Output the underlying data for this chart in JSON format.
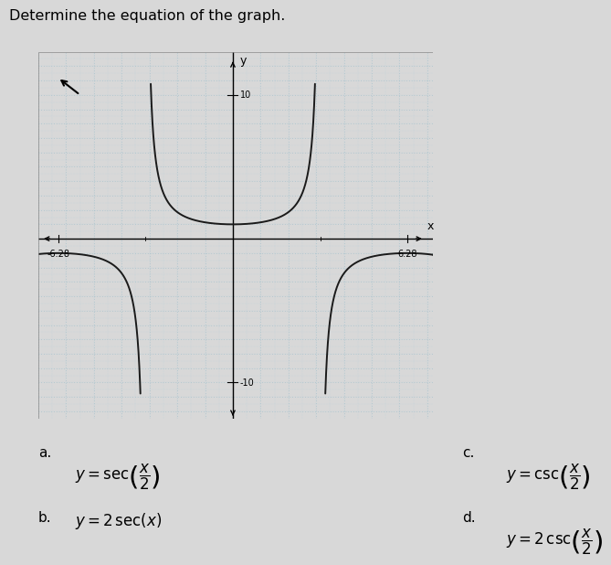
{
  "title": "Determine the equation of the graph.",
  "xlim": [
    -7.0,
    7.2
  ],
  "ylim": [
    -12.5,
    13.0
  ],
  "curve_color": "#1a1a1a",
  "grid_minor_color": "#b8d4dc",
  "grid_major_color": "#9abcc8",
  "plot_bg_color": "#ccdde6",
  "fig_bg_color": "#d8d8d8",
  "clip_y": 10.8,
  "pi": 3.14159265358979,
  "two_pi": 6.28318530717959,
  "answer_a_label": "a.",
  "answer_a_eq": "y = \\sec\\!\\left(\\dfrac{x}{2}\\right)",
  "answer_b_label": "b.",
  "answer_b_eq": "y = 2\\,\\mathrm{sec}(x)",
  "answer_c_label": "c.",
  "answer_c_eq": "y = \\csc\\!\\left(\\dfrac{x}{2}\\right)",
  "answer_d_label": "d.",
  "answer_d_eq": "y = 2\\,\\csc\\!\\left(\\dfrac{x}{2}\\right)"
}
